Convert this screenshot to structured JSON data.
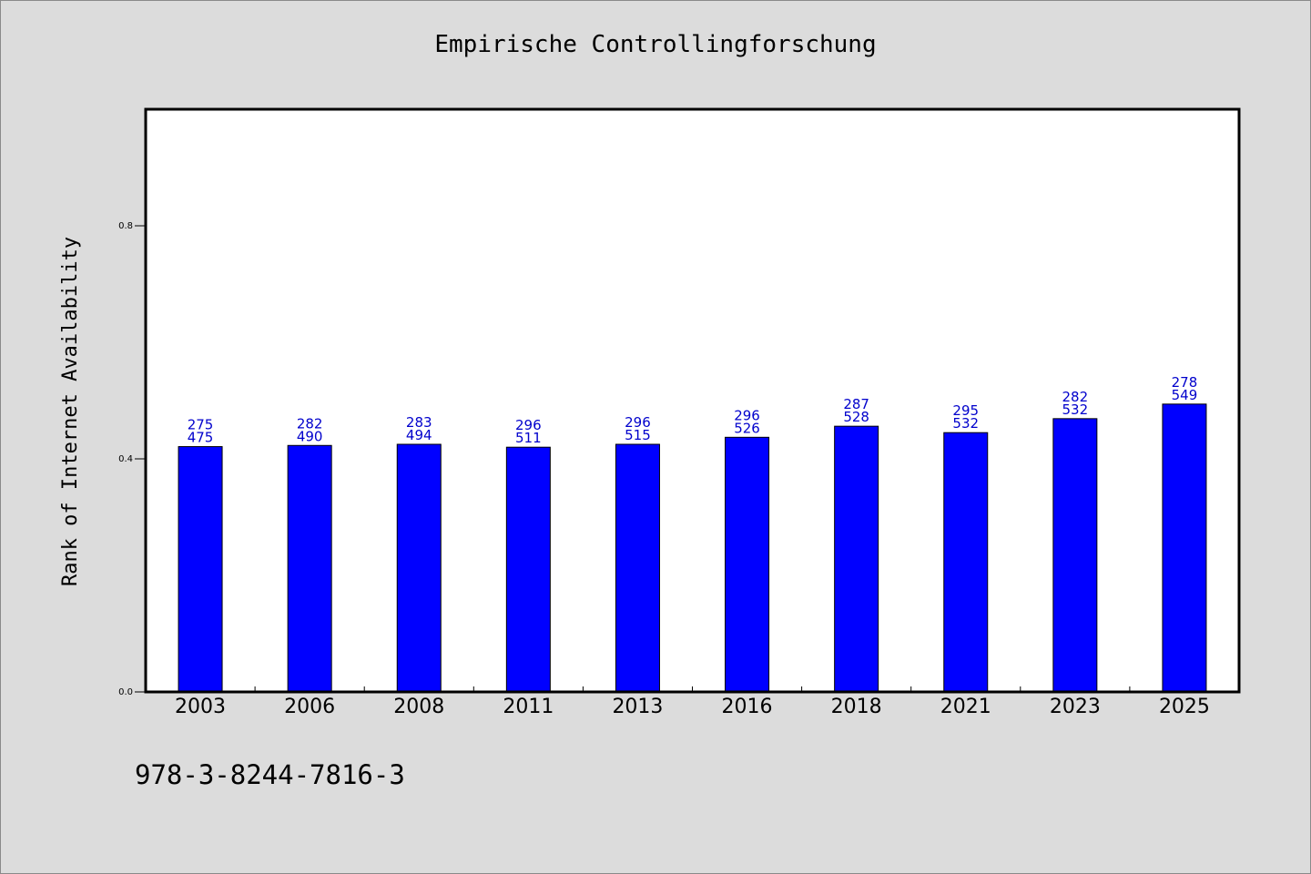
{
  "title": "Empirische Controllingforschung",
  "footer_text": "978-3-8244-7816-3",
  "colors": {
    "bar": "#0000ff",
    "label": "#0000cc",
    "background": "#dcdcdc",
    "plot": "#ffffff"
  },
  "chart_data": {
    "type": "bar",
    "title": "Empirische Controllingforschung",
    "xlabel": "",
    "ylabel": "Rank of Internet Availability",
    "ylim": [
      0,
      1.0
    ],
    "yticks": [
      0.0,
      0.4,
      0.8
    ],
    "ytick_labels": [
      "0.0",
      "0.4",
      "0.8"
    ],
    "grid": false,
    "categories": [
      "2003",
      "2006",
      "2008",
      "2011",
      "2013",
      "2016",
      "2018",
      "2021",
      "2023",
      "2025"
    ],
    "values": [
      0.421,
      0.423,
      0.425,
      0.42,
      0.425,
      0.437,
      0.456,
      0.445,
      0.469,
      0.494
    ],
    "labels_top": [
      "275",
      "282",
      "283",
      "296",
      "296",
      "296",
      "287",
      "295",
      "282",
      "278"
    ],
    "labels_bottom": [
      "475",
      "490",
      "494",
      "511",
      "515",
      "526",
      "528",
      "532",
      "532",
      "549"
    ]
  }
}
